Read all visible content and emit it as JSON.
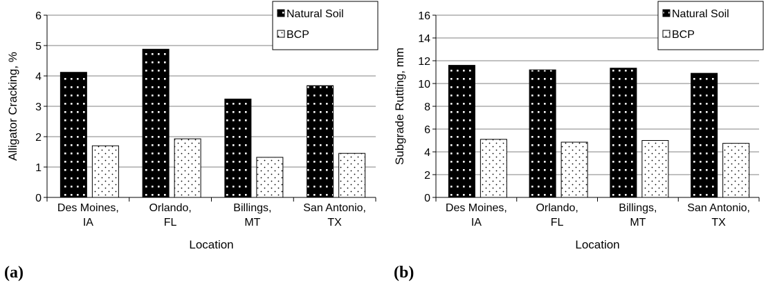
{
  "patterns": {
    "natural_soil": "black-with-white-dots",
    "bcp": "white-with-black-dots"
  },
  "colors": {
    "bar_dark": "#000000",
    "bar_light": "#ffffff",
    "grid": "#808080"
  },
  "chart_data": [
    {
      "type": "bar",
      "panel_label": "(a)",
      "categories": [
        [
          "Des Moines,",
          "IA"
        ],
        [
          "Orlando,",
          "FL"
        ],
        [
          "Billings,",
          "MT"
        ],
        [
          "San Antonio,",
          "TX"
        ]
      ],
      "series": [
        {
          "name": "Natural Soil",
          "values": [
            4.12,
            4.88,
            3.24,
            3.68
          ]
        },
        {
          "name": "BCP",
          "values": [
            1.7,
            1.93,
            1.32,
            1.45
          ]
        }
      ],
      "xlabel": "Location",
      "ylabel": "Alligator Cracking, %",
      "ylim": [
        0,
        6
      ],
      "yticks": [
        0,
        1,
        2,
        3,
        4,
        5,
        6
      ],
      "grid": true,
      "legend_position": "top-right"
    },
    {
      "type": "bar",
      "panel_label": "(b)",
      "categories": [
        [
          "Des Moines,",
          "IA"
        ],
        [
          "Orlando,",
          "FL"
        ],
        [
          "Billings,",
          "MT"
        ],
        [
          "San Antonio,",
          "TX"
        ]
      ],
      "series": [
        {
          "name": "Natural Soil",
          "values": [
            11.6,
            11.2,
            11.35,
            10.9
          ]
        },
        {
          "name": "BCP",
          "values": [
            5.1,
            4.85,
            5.0,
            4.75
          ]
        }
      ],
      "xlabel": "Location",
      "ylabel": "Subgrade Rutting, mm",
      "ylim": [
        0,
        16
      ],
      "yticks": [
        0,
        2,
        4,
        6,
        8,
        10,
        12,
        14,
        16
      ],
      "grid": true,
      "legend_position": "top-right"
    }
  ]
}
